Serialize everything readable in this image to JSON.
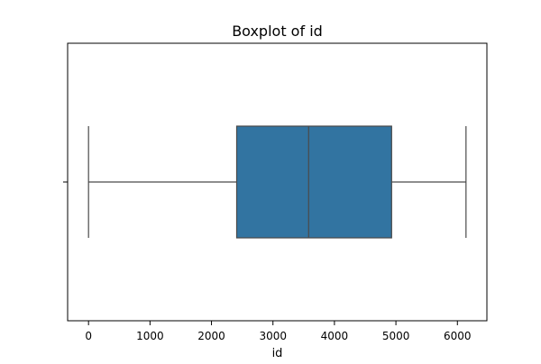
{
  "chart_data": {
    "type": "boxplot",
    "title": "Boxplot of id",
    "xlabel": "id",
    "ylabel": "",
    "orientation": "horizontal",
    "xlim": [
      -340,
      6480
    ],
    "xticks": [
      0,
      1000,
      2000,
      3000,
      4000,
      5000,
      6000
    ],
    "xtick_labels": [
      "0",
      "1000",
      "2000",
      "3000",
      "4000",
      "5000",
      "6000"
    ],
    "box": {
      "whisker_low": 0,
      "q1": 2410,
      "median": 3580,
      "q3": 4930,
      "whisker_high": 6140
    },
    "colors": {
      "box_fill": "#3274a1",
      "line": "#4a4a4a",
      "axes": "#000000"
    },
    "grid": false,
    "legend": "none"
  }
}
